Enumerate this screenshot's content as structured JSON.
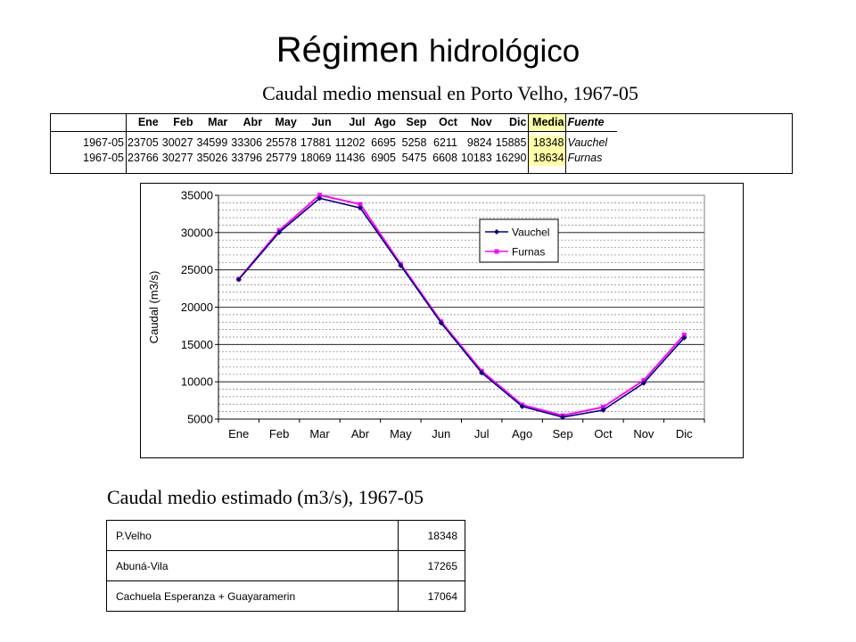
{
  "title_part1": "Régimen",
  "title_part2": "hidrológico",
  "table_heading": "Caudal medio mensual en Porto Velho, 1967-05",
  "table": {
    "headers": [
      "Ene",
      "Feb",
      "Mar",
      "Abr",
      "May",
      "Jun",
      "Jul",
      "Ago",
      "Sep",
      "Oct",
      "Nov",
      "Dic",
      "Media",
      "Fuente"
    ],
    "rows": [
      {
        "period": "1967-05",
        "values": [
          "23705",
          "30027",
          "34599",
          "33306",
          "25578",
          "17881",
          "11202",
          "6695",
          "5258",
          "6211",
          "9824",
          "15885"
        ],
        "media": "18348",
        "fuente": "Vauchel"
      },
      {
        "period": "1967-05",
        "values": [
          "23766",
          "30277",
          "35026",
          "33796",
          "25779",
          "18069",
          "11436",
          "6905",
          "5475",
          "6608",
          "10183",
          "16290"
        ],
        "media": "18634",
        "fuente": "Furnas"
      }
    ]
  },
  "chart_data": {
    "type": "line",
    "categories": [
      "Ene",
      "Feb",
      "Mar",
      "Abr",
      "May",
      "Jun",
      "Jul",
      "Ago",
      "Sep",
      "Oct",
      "Nov",
      "Dic"
    ],
    "series": [
      {
        "name": "Vauchel",
        "color": "#000080",
        "marker": "diamond",
        "values": [
          23705,
          30027,
          34599,
          33306,
          25578,
          17881,
          11202,
          6695,
          5258,
          6211,
          9824,
          15885
        ]
      },
      {
        "name": "Furnas",
        "color": "#ff00ff",
        "marker": "square",
        "values": [
          23766,
          30277,
          35026,
          33796,
          25779,
          18069,
          11436,
          6905,
          5475,
          6608,
          10183,
          16290
        ]
      }
    ],
    "ylabel": "Caudal (m3/s)",
    "xlabel": "",
    "ylim": [
      5000,
      35000
    ],
    "yticks": [
      5000,
      10000,
      15000,
      20000,
      25000,
      30000,
      35000
    ],
    "minor_grid_step": 1000,
    "grid": true,
    "legend_position": "top-right"
  },
  "summary_heading": "Caudal medio estimado (m3/s), 1967-05",
  "summary": [
    {
      "name": "P.Velho",
      "value": "18348"
    },
    {
      "name": "Abuná-Vila",
      "value": "17265"
    },
    {
      "name": "Cachuela Esperanza + Guayaramerin",
      "value": "17064"
    }
  ]
}
